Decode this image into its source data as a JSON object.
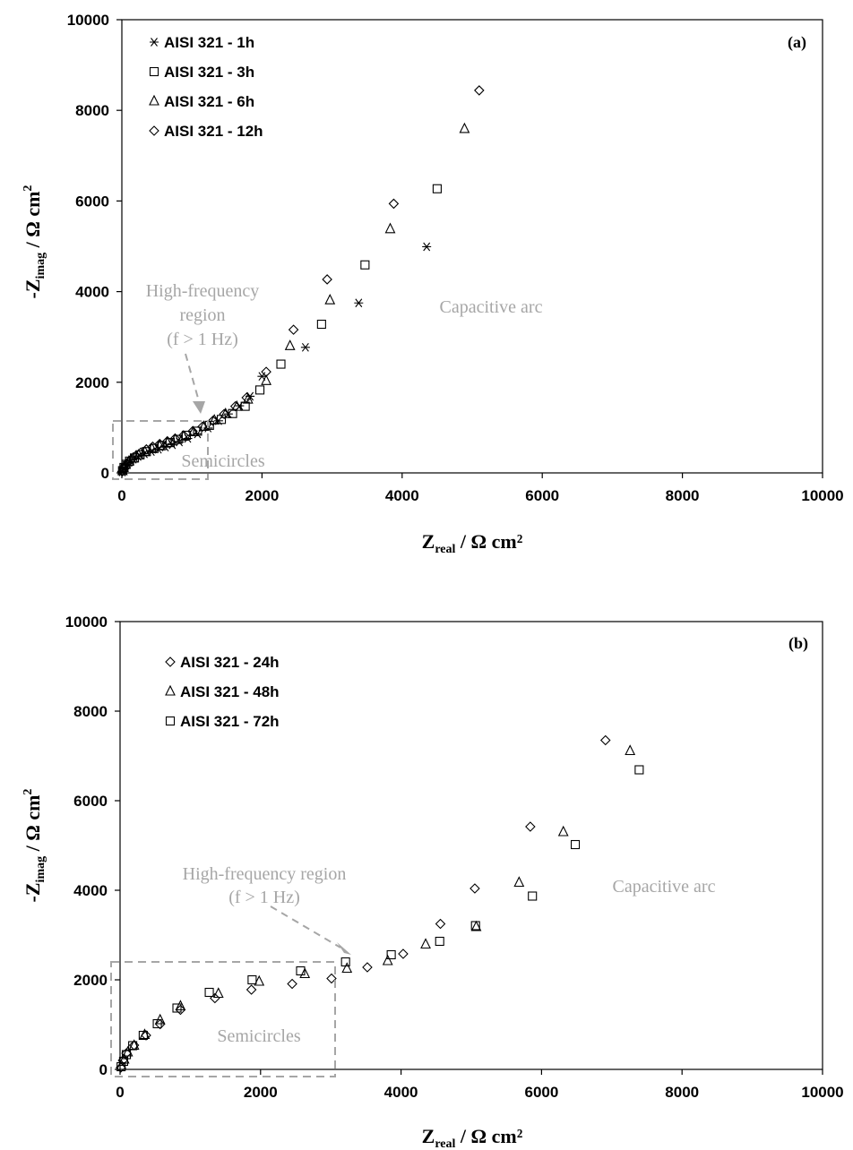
{
  "chart_data": [
    {
      "type": "scatter",
      "panel_label": "(a)",
      "xlabel": {
        "main": "Z",
        "sub": "real",
        "unit": " / Ω cm²"
      },
      "ylabel": {
        "main": "-Z",
        "sub": "imag",
        "unit": " / Ω cm",
        "sup": "2"
      },
      "xlim": [
        0,
        10000
      ],
      "ylim": [
        0,
        10000
      ],
      "xticks": [
        "0",
        "2000",
        "4000",
        "6000",
        "8000",
        "10000"
      ],
      "yticks": [
        "0",
        "2000",
        "4000",
        "6000",
        "8000",
        "10000"
      ],
      "grid": false,
      "legend_position": "top-left",
      "annotations": {
        "high_frequency": [
          "High-frequency",
          "region",
          "(f > 1 Hz)"
        ],
        "semicircles": "Semicircles",
        "capacitive": "Capacitive arc"
      },
      "series": [
        {
          "name": "AISI 321 - 1h",
          "marker": "asterisk",
          "x": [
            5,
            15,
            30,
            60,
            100,
            160,
            230,
            320,
            420,
            520,
            620,
            720,
            820,
            940,
            1080,
            1230,
            1380,
            1520,
            1680,
            1830,
            2000,
            2620,
            3380,
            4350
          ],
          "y": [
            20,
            60,
            110,
            170,
            230,
            300,
            360,
            420,
            470,
            520,
            570,
            620,
            680,
            760,
            860,
            990,
            1150,
            1300,
            1480,
            1690,
            2130,
            2770,
            3750,
            4990
          ]
        },
        {
          "name": "AISI 321 - 3h",
          "marker": "square",
          "x": [
            10,
            30,
            60,
            110,
            180,
            260,
            350,
            460,
            570,
            690,
            800,
            920,
            1080,
            1250,
            1420,
            1580,
            1760,
            1970,
            2270,
            2850,
            3470,
            4500
          ],
          "y": [
            50,
            120,
            190,
            260,
            330,
            400,
            470,
            540,
            600,
            670,
            740,
            830,
            920,
            1050,
            1180,
            1310,
            1470,
            1830,
            2400,
            3280,
            4590,
            6270
          ]
        },
        {
          "name": "AISI 321 - 6h",
          "marker": "triangle",
          "x": [
            10,
            25,
            55,
            100,
            160,
            240,
            330,
            430,
            540,
            650,
            760,
            880,
            1020,
            1170,
            1320,
            1480,
            1640,
            1800,
            2060,
            2400,
            2970,
            3830,
            4890
          ],
          "y": [
            40,
            110,
            180,
            250,
            320,
            390,
            460,
            530,
            590,
            660,
            730,
            800,
            900,
            1020,
            1160,
            1300,
            1460,
            1620,
            2030,
            2800,
            3810,
            5380,
            7590
          ]
        },
        {
          "name": "AISI 321 - 12h",
          "marker": "diamond",
          "x": [
            5,
            20,
            50,
            90,
            140,
            200,
            270,
            350,
            440,
            540,
            650,
            760,
            880,
            1010,
            1150,
            1300,
            1460,
            1620,
            1780,
            2060,
            2450,
            2930,
            3880,
            5100
          ],
          "y": [
            30,
            100,
            170,
            240,
            310,
            380,
            450,
            520,
            580,
            640,
            700,
            760,
            830,
            920,
            1020,
            1150,
            1300,
            1470,
            1660,
            2230,
            3160,
            4270,
            5940,
            8440
          ]
        }
      ]
    },
    {
      "type": "scatter",
      "panel_label": "(b)",
      "xlabel": {
        "main": "Z",
        "sub": "real",
        "unit": " / Ω cm²"
      },
      "ylabel": {
        "main": "-Z",
        "sub": "imag",
        "unit": " / Ω cm",
        "sup": "2"
      },
      "xlim": [
        0,
        10000
      ],
      "ylim": [
        0,
        10000
      ],
      "xticks": [
        "0",
        "2000",
        "4000",
        "6000",
        "8000",
        "10000"
      ],
      "yticks": [
        "0",
        "2000",
        "4000",
        "6000",
        "8000",
        "10000"
      ],
      "grid": false,
      "legend_position": "top-left",
      "annotations": {
        "high_frequency": [
          "High-frequency region",
          "(f > 1 Hz)"
        ],
        "semicircles": "Semicircles",
        "capacitive": "Capacitive arc"
      },
      "series": [
        {
          "name": "AISI 321 - 24h",
          "marker": "diamond",
          "x": [
            10,
            40,
            90,
            200,
            370,
            570,
            860,
            1350,
            1870,
            2450,
            3010,
            3520,
            4030,
            4560,
            5050,
            5840,
            6910
          ],
          "y": [
            40,
            200,
            360,
            540,
            760,
            1010,
            1330,
            1590,
            1780,
            1910,
            2030,
            2280,
            2580,
            3250,
            4040,
            5420,
            7350
          ]
        },
        {
          "name": "AISI 321 - 48h",
          "marker": "triangle",
          "x": [
            20,
            60,
            110,
            200,
            350,
            570,
            860,
            1400,
            1980,
            2630,
            3230,
            3810,
            4350,
            5070,
            5680,
            6310,
            7260
          ],
          "y": [
            80,
            220,
            380,
            530,
            770,
            1100,
            1410,
            1690,
            1960,
            2130,
            2250,
            2420,
            2790,
            3180,
            4170,
            5300,
            7110
          ]
        },
        {
          "name": "AISI 321 - 72h",
          "marker": "square",
          "x": [
            15,
            50,
            90,
            180,
            330,
            530,
            810,
            1270,
            1880,
            2570,
            3210,
            3860,
            4550,
            5060,
            5870,
            6480,
            7390
          ],
          "y": [
            60,
            180,
            330,
            530,
            760,
            1020,
            1370,
            1720,
            2000,
            2200,
            2400,
            2560,
            2860,
            3210,
            3870,
            5020,
            6690
          ]
        }
      ]
    }
  ]
}
